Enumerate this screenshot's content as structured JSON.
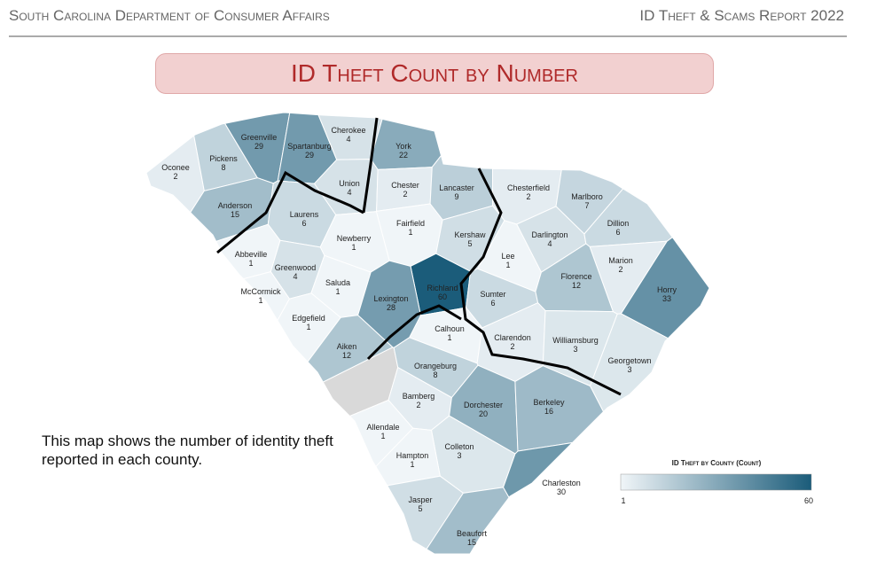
{
  "header": {
    "left": "South Carolina Department of Consumer Affairs",
    "right": "ID Theft & Scams Report 2022"
  },
  "title": "ID Theft Count by Number",
  "description": "This map shows the number of identity theft reported in each county.",
  "legend": {
    "title": "ID Theft by County (Count)",
    "min": 1,
    "max": 60
  },
  "counties": [
    {
      "name": "Oconee",
      "count": 2
    },
    {
      "name": "Pickens",
      "count": 8
    },
    {
      "name": "Greenville",
      "count": 29
    },
    {
      "name": "Spartanburg",
      "count": 29
    },
    {
      "name": "Cherokee",
      "count": 4
    },
    {
      "name": "York",
      "count": 22
    },
    {
      "name": "Anderson",
      "count": 15
    },
    {
      "name": "Union",
      "count": 4
    },
    {
      "name": "Chester",
      "count": 2
    },
    {
      "name": "Lancaster",
      "count": 9
    },
    {
      "name": "Chesterfield",
      "count": 2
    },
    {
      "name": "Marlboro",
      "count": 7
    },
    {
      "name": "Laurens",
      "count": 6
    },
    {
      "name": "Fairfield",
      "count": 1
    },
    {
      "name": "Kershaw",
      "count": 5
    },
    {
      "name": "Darlington",
      "count": 4
    },
    {
      "name": "Dillion",
      "count": 6
    },
    {
      "name": "Newberry",
      "count": 1
    },
    {
      "name": "Abbeville",
      "count": 1
    },
    {
      "name": "Greenwood",
      "count": 4
    },
    {
      "name": "Lee",
      "count": 1
    },
    {
      "name": "Marion",
      "count": 2
    },
    {
      "name": "Saluda",
      "count": 1
    },
    {
      "name": "Richland",
      "count": 60
    },
    {
      "name": "Lexington",
      "count": 28
    },
    {
      "name": "Sumter",
      "count": 6
    },
    {
      "name": "Florence",
      "count": 12
    },
    {
      "name": "Horry",
      "count": 33
    },
    {
      "name": "McCormick",
      "count": 1
    },
    {
      "name": "Edgefield",
      "count": 1
    },
    {
      "name": "Calhoun",
      "count": 1
    },
    {
      "name": "Clarendon",
      "count": 2
    },
    {
      "name": "Williamsburg",
      "count": 3
    },
    {
      "name": "Aiken",
      "count": 12
    },
    {
      "name": "Georgetown",
      "count": 3
    },
    {
      "name": "Orangeburg",
      "count": 8
    },
    {
      "name": "Bamberg",
      "count": 2
    },
    {
      "name": "Dorchester",
      "count": 20
    },
    {
      "name": "Berkeley",
      "count": 16
    },
    {
      "name": "Allendale",
      "count": 1
    },
    {
      "name": "Colleton",
      "count": 3
    },
    {
      "name": "Hampton",
      "count": 1
    },
    {
      "name": "Charleston",
      "count": 30
    },
    {
      "name": "Jasper",
      "count": 5
    },
    {
      "name": "Beaufort",
      "count": 15
    }
  ]
}
